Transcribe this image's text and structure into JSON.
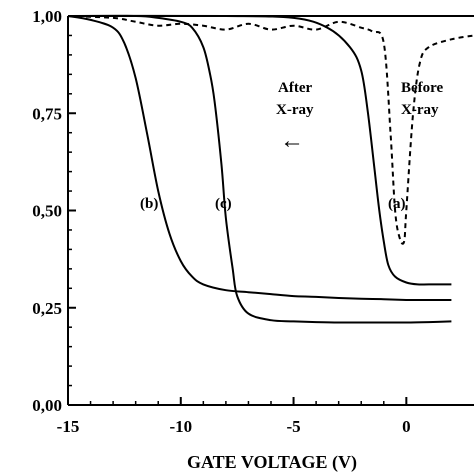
{
  "chart_data": {
    "type": "line",
    "title": "",
    "xlabel": "GATE VOLTAGE (V)",
    "ylabel": "",
    "xlim": [
      -15,
      3
    ],
    "ylim": [
      0,
      1
    ],
    "x_ticks": [
      -15,
      -10,
      -5,
      0
    ],
    "x_tick_labels": [
      "-15",
      "-10",
      "-5",
      "0"
    ],
    "y_ticks": [
      0,
      0.25,
      0.5,
      0.75,
      1.0
    ],
    "y_tick_labels": [
      "0,00",
      "0,25",
      "0,50",
      "0,75",
      "1,00"
    ],
    "grid": false,
    "legend": "none",
    "annotations": {
      "after_line1": "After",
      "after_line2": "X-ray",
      "before_line1": "Before",
      "before_line2": "X-ray",
      "arrow": "←"
    },
    "series": [
      {
        "label": "(a)",
        "style": "dashed",
        "x": [
          -15,
          -13,
          -12,
          -11,
          -10,
          -9,
          -8,
          -7,
          -6,
          -5,
          -4,
          -3,
          -2,
          -1.5,
          -1,
          -0.7,
          -0.5,
          -0.3,
          -0.1,
          0,
          0.3,
          0.6,
          1,
          2,
          3
        ],
        "y": [
          1.0,
          0.995,
          0.985,
          0.975,
          0.98,
          0.975,
          0.965,
          0.98,
          0.965,
          0.975,
          0.965,
          0.985,
          0.97,
          0.96,
          0.93,
          0.7,
          0.5,
          0.43,
          0.42,
          0.5,
          0.75,
          0.88,
          0.92,
          0.94,
          0.95
        ]
      },
      {
        "label": "(b)",
        "style": "solid",
        "x": [
          -15,
          -14,
          -13,
          -12.5,
          -12,
          -11.5,
          -11,
          -10.5,
          -10,
          -9.5,
          -9,
          -8,
          -7,
          -6,
          -5,
          -4,
          -3,
          -2,
          -1,
          0,
          1,
          2
        ],
        "y": [
          1.0,
          0.99,
          0.97,
          0.93,
          0.84,
          0.7,
          0.55,
          0.44,
          0.37,
          0.33,
          0.31,
          0.295,
          0.29,
          0.285,
          0.28,
          0.278,
          0.275,
          0.273,
          0.272,
          0.27,
          0.27,
          0.27
        ]
      },
      {
        "label": "(c)",
        "style": "solid",
        "x": [
          -15,
          -12,
          -11,
          -10,
          -9.5,
          -9,
          -8.7,
          -8.5,
          -8.2,
          -8,
          -7.7,
          -7.5,
          -7,
          -6,
          -5,
          -4,
          -3,
          -2,
          -1,
          0,
          1,
          2
        ],
        "y": [
          1.0,
          1.0,
          0.995,
          0.985,
          0.97,
          0.92,
          0.85,
          0.78,
          0.62,
          0.48,
          0.35,
          0.28,
          0.235,
          0.218,
          0.215,
          0.213,
          0.212,
          0.212,
          0.212,
          0.212,
          0.213,
          0.215
        ]
      },
      {
        "label": "",
        "style": "solid",
        "x": [
          -15,
          -8,
          -5,
          -3.5,
          -2.5,
          -2,
          -1.7,
          -1.4,
          -1.2,
          -1,
          -0.8,
          -0.5,
          0,
          0.5,
          1,
          2
        ],
        "y": [
          1.0,
          1.0,
          0.995,
          0.97,
          0.92,
          0.86,
          0.75,
          0.6,
          0.5,
          0.42,
          0.36,
          0.33,
          0.315,
          0.31,
          0.31,
          0.31
        ]
      }
    ]
  }
}
